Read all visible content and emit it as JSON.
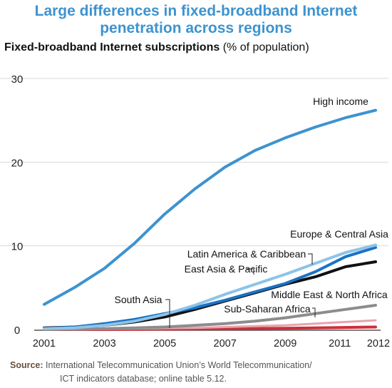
{
  "title_line1": "Large differences in fixed-broadband Internet",
  "title_line2": "penetration across regions",
  "subtitle_bold": "Fixed-broadband Internet subscriptions",
  "subtitle_rest": " (% of population)",
  "source_label": "Source:",
  "source_line1": " International Telecommunication Union’s World Telecommunication/",
  "source_line2": "ICT indicators database; online table 5.12.",
  "chart_data": {
    "type": "line",
    "x": [
      2001,
      2002,
      2003,
      2004,
      2005,
      2006,
      2007,
      2008,
      2009,
      2010,
      2011,
      2012
    ],
    "x_ticks": [
      "2001",
      "2003",
      "2005",
      "2007",
      "2009",
      "2011",
      "2012"
    ],
    "y_ticks": [
      "0",
      "10",
      "20",
      "30"
    ],
    "ylim": [
      0,
      30
    ],
    "grid": true,
    "series": [
      {
        "name": "High income",
        "color": "#3d93cf",
        "width": 4,
        "values": [
          3.0,
          5.0,
          7.3,
          10.3,
          13.8,
          16.8,
          19.4,
          21.4,
          22.9,
          24.2,
          25.3,
          26.2
        ]
      },
      {
        "name": "Europe & Central Asia",
        "color": "#8dc3e8",
        "width": 4,
        "values": [
          0.1,
          0.2,
          0.5,
          1.0,
          1.8,
          2.9,
          4.2,
          5.4,
          6.6,
          7.9,
          9.2,
          10.1
        ]
      },
      {
        "name": "Latin America & Caribbean",
        "color": "#1a73c4",
        "width": 4,
        "values": [
          0.1,
          0.3,
          0.7,
          1.2,
          1.9,
          2.6,
          3.5,
          4.5,
          5.5,
          6.9,
          8.7,
          9.8
        ]
      },
      {
        "name": "East Asia & Pacific",
        "color": "#111111",
        "width": 4,
        "values": [
          0.2,
          0.3,
          0.5,
          0.9,
          1.5,
          2.4,
          3.4,
          4.4,
          5.4,
          6.3,
          7.5,
          8.1
        ]
      },
      {
        "name": "Middle East & North Africa",
        "color": "#8c8c8c",
        "width": 4,
        "values": [
          0.0,
          0.05,
          0.1,
          0.2,
          0.3,
          0.5,
          0.7,
          1.0,
          1.4,
          1.9,
          2.4,
          2.9
        ]
      },
      {
        "name": "Sub-Saharan Africa",
        "color": "#e8a4ad",
        "width": 3,
        "values": [
          0.0,
          0.0,
          0.05,
          0.1,
          0.15,
          0.2,
          0.3,
          0.4,
          0.5,
          0.7,
          0.9,
          1.1
        ]
      },
      {
        "name": "South Asia",
        "color": "#c9303d",
        "width": 4,
        "values": [
          0.0,
          0.0,
          0.0,
          0.02,
          0.05,
          0.08,
          0.1,
          0.12,
          0.15,
          0.2,
          0.25,
          0.3
        ]
      }
    ]
  }
}
